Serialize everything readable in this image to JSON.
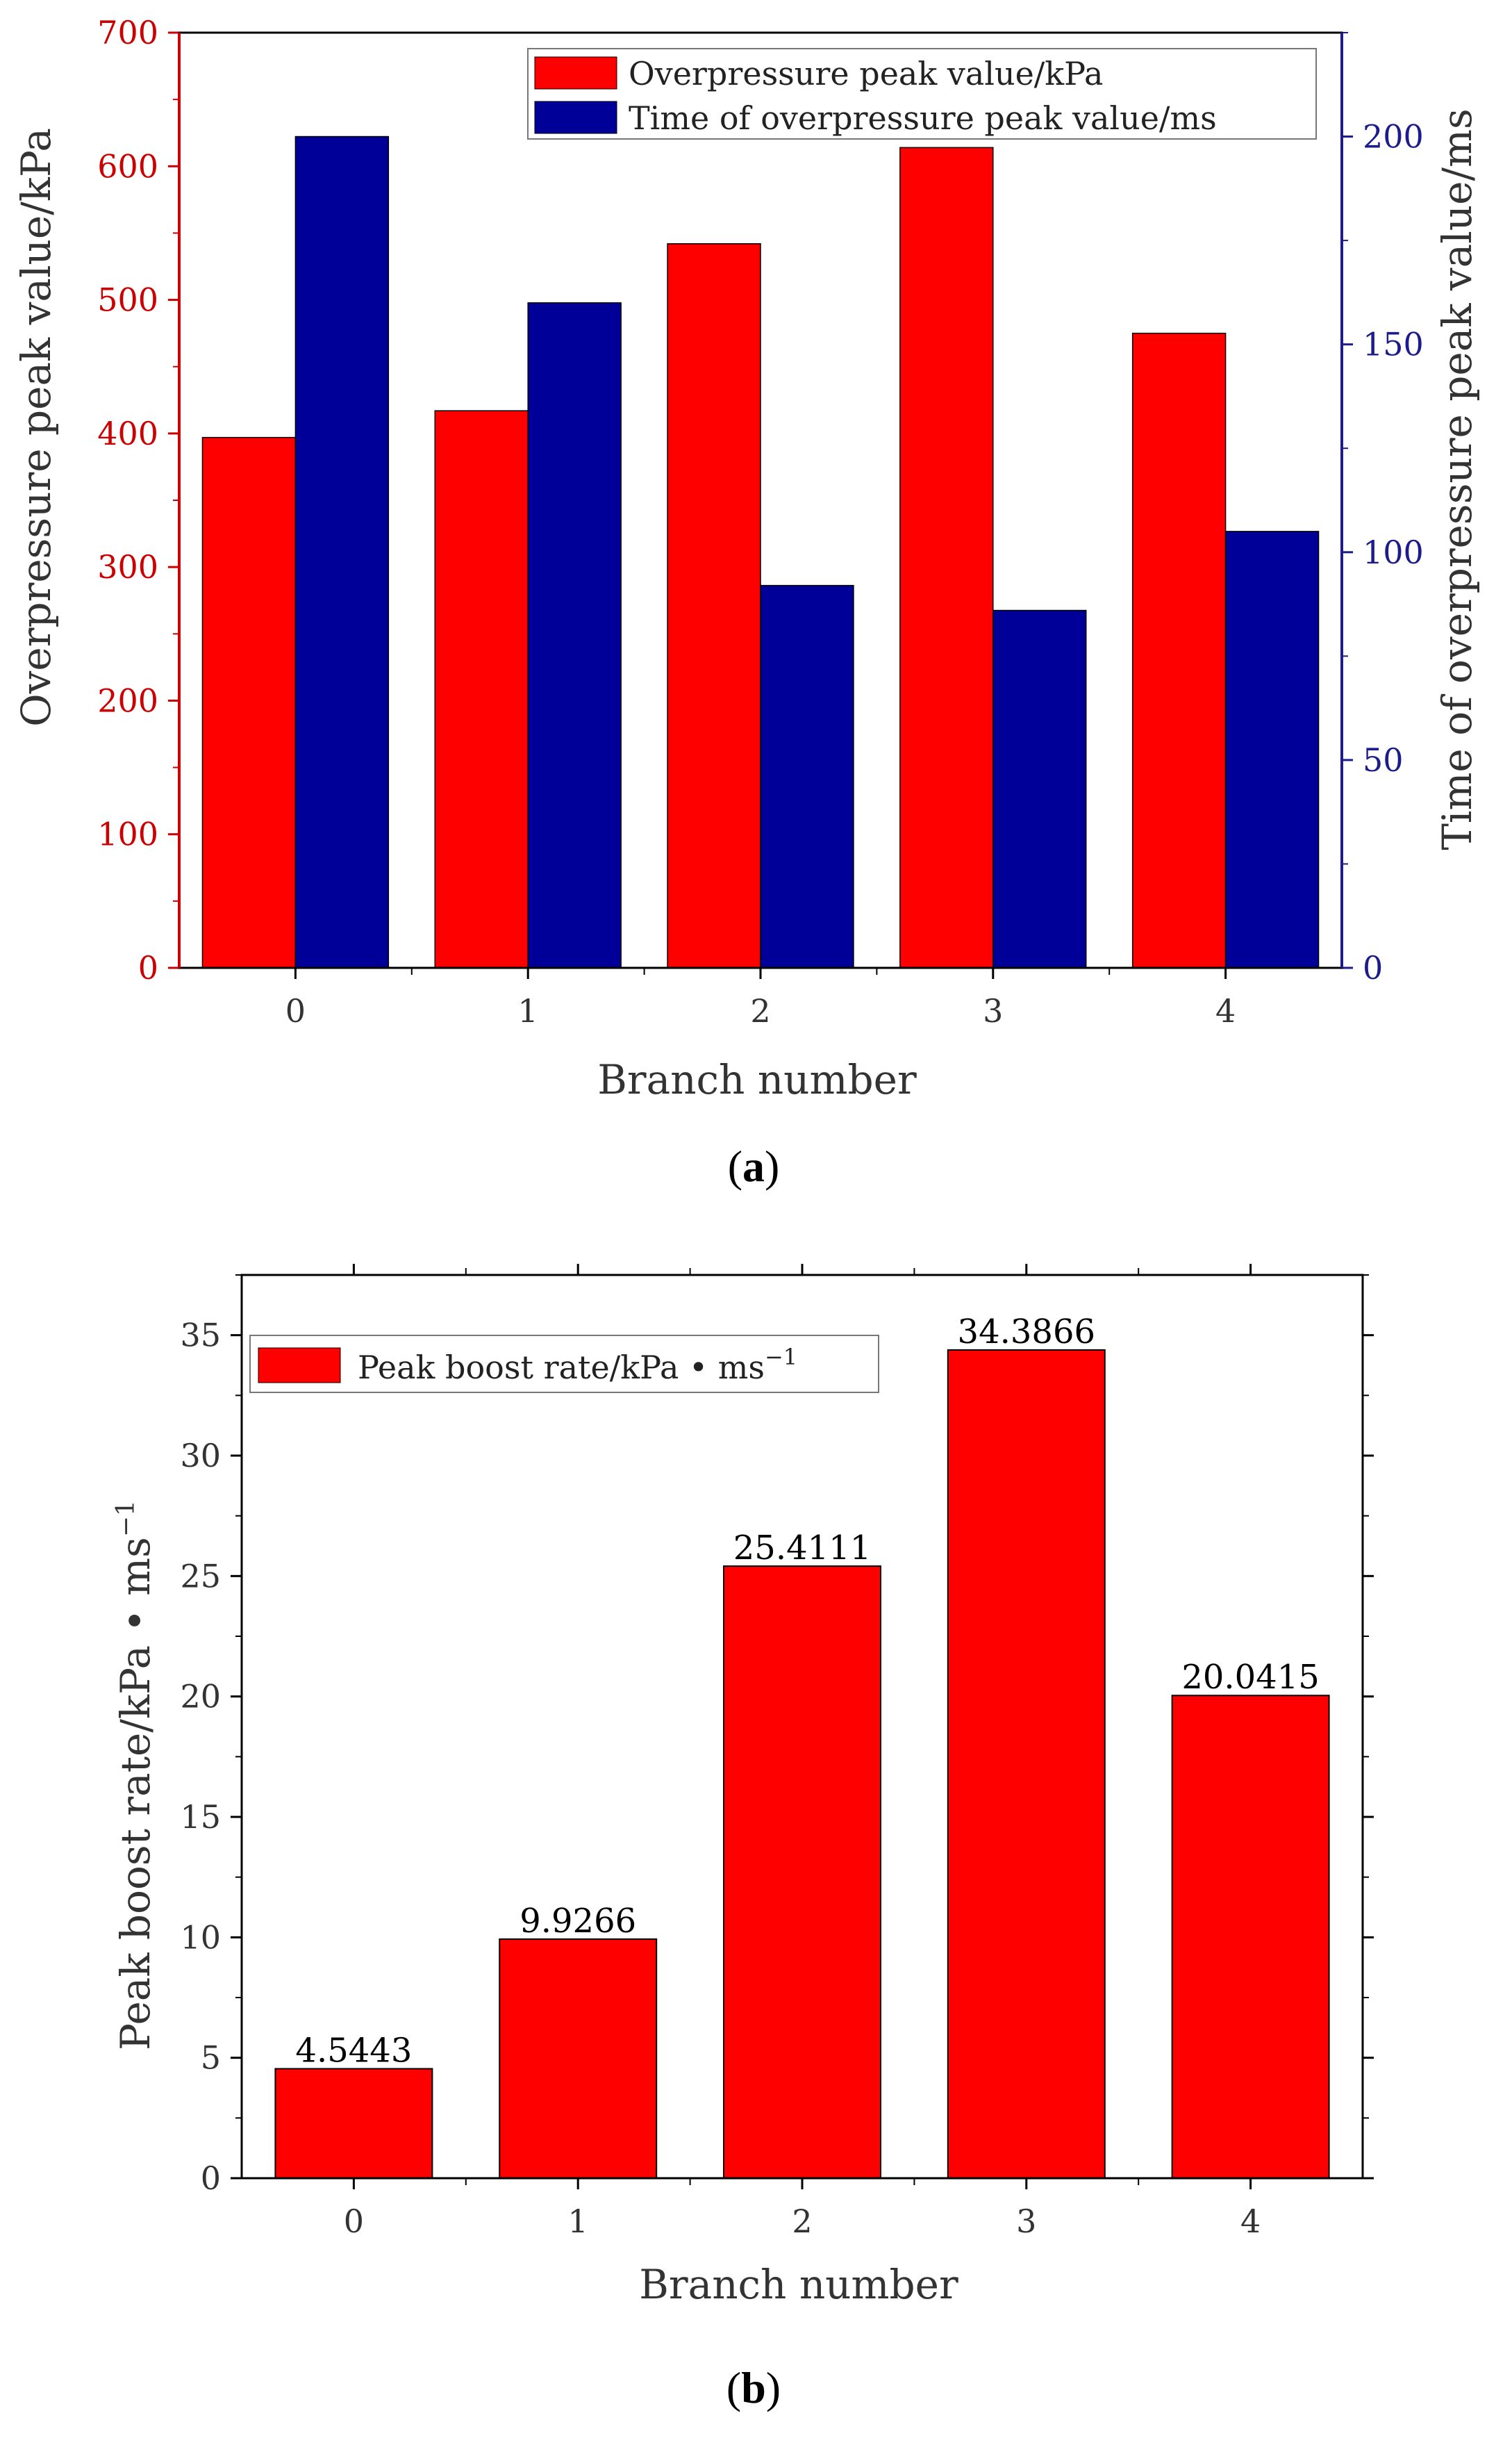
{
  "colors": {
    "overpressure": "#ff0000",
    "time": "#000099",
    "left_axis": "#cc0000",
    "right_axis": "#1c1c8c",
    "axis_black": "#000000",
    "text_gray": "#333333"
  },
  "chart_data": [
    {
      "type": "bar",
      "panel": "(a)",
      "panel_open": "(",
      "panel_letter": "a",
      "panel_close": ")",
      "categories": [
        "0",
        "1",
        "2",
        "3",
        "4"
      ],
      "xlabel": "Branch number",
      "ylabel_left": "Overpressure peak value/kPa",
      "ylabel_right": "Time of overpressure peak value/ms",
      "ylim_left": [
        0,
        700
      ],
      "yticks_left": [
        0,
        100,
        200,
        300,
        400,
        500,
        600,
        700
      ],
      "ylim_right": [
        0,
        225
      ],
      "yticks_right": [
        0,
        50,
        100,
        150,
        200
      ],
      "series": [
        {
          "name": "Overpressure peak value/kPa",
          "axis": "left",
          "values": [
            397,
            417,
            542,
            614,
            475
          ]
        },
        {
          "name": "Time of overpressure peak value/ms",
          "axis": "right",
          "values": [
            200,
            160,
            92,
            86,
            105
          ]
        }
      ],
      "legend_position": "top-right"
    },
    {
      "type": "bar",
      "panel": "(b)",
      "panel_open": "(",
      "panel_letter": "b",
      "panel_close": ")",
      "categories": [
        "0",
        "1",
        "2",
        "3",
        "4"
      ],
      "xlabel": "Branch number",
      "ylabel": "Peak boost rate/kPa • ms",
      "ylabel_sup": "−1",
      "ylim": [
        0,
        37.5
      ],
      "yticks": [
        0,
        5,
        10,
        15,
        20,
        25,
        30,
        35
      ],
      "series": [
        {
          "name": "Peak boost rate/kPa • ms",
          "name_sup": "−1",
          "values": [
            4.5443,
            9.9266,
            25.4111,
            34.3866,
            20.0415
          ]
        }
      ],
      "data_labels": [
        "4.5443",
        "9.9266",
        "25.4111",
        "34.3866",
        "20.0415"
      ],
      "legend_position": "top-left"
    }
  ]
}
